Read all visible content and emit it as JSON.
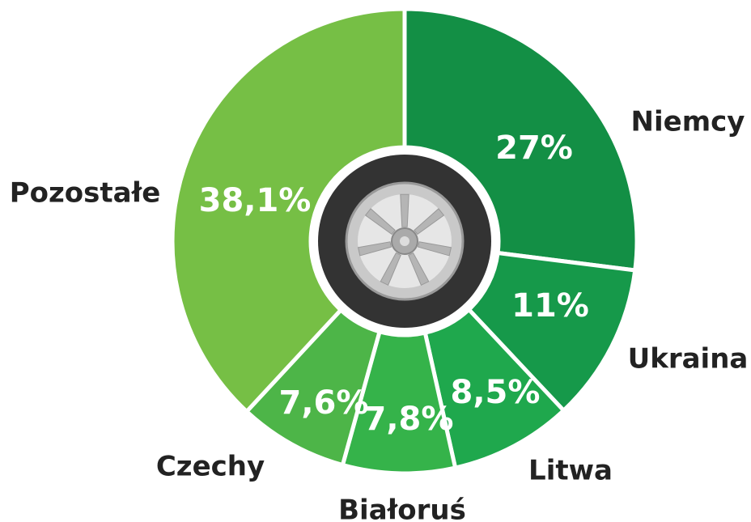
{
  "chart_data": {
    "type": "pie",
    "categories": [
      "Niemcy",
      "Ukraina",
      "Litwa",
      "Białoruś",
      "Czechy",
      "Pozostałe"
    ],
    "values": [
      27,
      11,
      8.5,
      7.8,
      7.6,
      38.1
    ],
    "value_labels": [
      "27%",
      "11%",
      "8,5%",
      "7,8%",
      "7,6%",
      "38,1%"
    ],
    "colors": [
      "#138f45",
      "#16994a",
      "#1fa84d",
      "#35b34a",
      "#4db548",
      "#76bf45"
    ]
  }
}
